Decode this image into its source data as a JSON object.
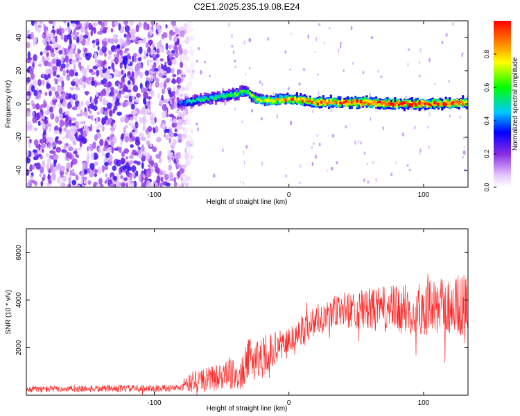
{
  "title": "C2E1.2025.235.19.08.E24",
  "chart_data": [
    {
      "type": "heatmap",
      "name": "spectrogram",
      "xlabel": "Height of straight line (km)",
      "ylabel": "Frequency (Hz)",
      "xlim": [
        -195,
        133
      ],
      "ylim": [
        -50,
        50
      ],
      "xticks": [
        -100,
        0,
        100
      ],
      "xtick_labels": [
        "-100",
        "0",
        "100"
      ],
      "yticks": [
        -40,
        -20,
        0,
        20,
        40
      ],
      "ytick_labels": [
        "-40",
        "-20",
        "0",
        "20",
        "40"
      ],
      "colorbar": {
        "label": "Normalized spectral amplitude",
        "range": [
          0,
          1
        ],
        "ticks": [
          0.0,
          0.2,
          0.4,
          0.6,
          0.8
        ],
        "tick_labels": [
          "0.0",
          "0.2",
          "0.4",
          "0.6",
          "0.8"
        ]
      },
      "noise_region_x": [
        -195,
        -75
      ],
      "signal_start_x": -83,
      "signal_track": [
        {
          "x": -83,
          "freq": 0,
          "amp": 0.35
        },
        {
          "x": -70,
          "freq": 2,
          "amp": 0.5
        },
        {
          "x": -55,
          "freq": 4,
          "amp": 0.55
        },
        {
          "x": -40,
          "freq": 6,
          "amp": 0.6
        },
        {
          "x": -33,
          "freq": 8,
          "amp": 0.6
        },
        {
          "x": -25,
          "freq": 3,
          "amp": 0.7
        },
        {
          "x": -15,
          "freq": 2,
          "amp": 0.8
        },
        {
          "x": 0,
          "freq": 3,
          "amp": 0.85
        },
        {
          "x": 20,
          "freq": 1,
          "amp": 0.9
        },
        {
          "x": 50,
          "freq": 1,
          "amp": 0.95
        },
        {
          "x": 80,
          "freq": 0,
          "amp": 1.0
        },
        {
          "x": 110,
          "freq": 0,
          "amp": 0.95
        },
        {
          "x": 133,
          "freq": 1,
          "amp": 0.85
        }
      ]
    },
    {
      "type": "line",
      "name": "snr",
      "xlabel": "Height of straight line (km)",
      "ylabel": "SNR (10 * v/v)",
      "xlim": [
        -195,
        133
      ],
      "ylim": [
        0,
        7000
      ],
      "xticks": [
        -100,
        0,
        100
      ],
      "xtick_labels": [
        "-100",
        "0",
        "100"
      ],
      "yticks": [
        2000,
        4000,
        6000
      ],
      "ytick_labels": [
        "2000",
        "4000",
        "6000"
      ],
      "color": "#ff2a2a",
      "envelope": [
        {
          "x": -195,
          "mean": 250,
          "amp": 180
        },
        {
          "x": -80,
          "mean": 300,
          "amp": 200
        },
        {
          "x": -70,
          "mean": 600,
          "amp": 700
        },
        {
          "x": -60,
          "mean": 650,
          "amp": 700
        },
        {
          "x": -50,
          "mean": 800,
          "amp": 800
        },
        {
          "x": -35,
          "mean": 900,
          "amp": 900
        },
        {
          "x": -30,
          "mean": 1500,
          "amp": 1200
        },
        {
          "x": -20,
          "mean": 1600,
          "amp": 1200
        },
        {
          "x": -10,
          "mean": 2000,
          "amp": 900
        },
        {
          "x": 0,
          "mean": 2300,
          "amp": 800
        },
        {
          "x": 20,
          "mean": 3200,
          "amp": 900
        },
        {
          "x": 40,
          "mean": 3600,
          "amp": 1000
        },
        {
          "x": 80,
          "mean": 3600,
          "amp": 1400
        },
        {
          "x": 110,
          "mean": 3700,
          "amp": 1600
        },
        {
          "x": 133,
          "mean": 3800,
          "amp": 1800
        }
      ]
    }
  ]
}
